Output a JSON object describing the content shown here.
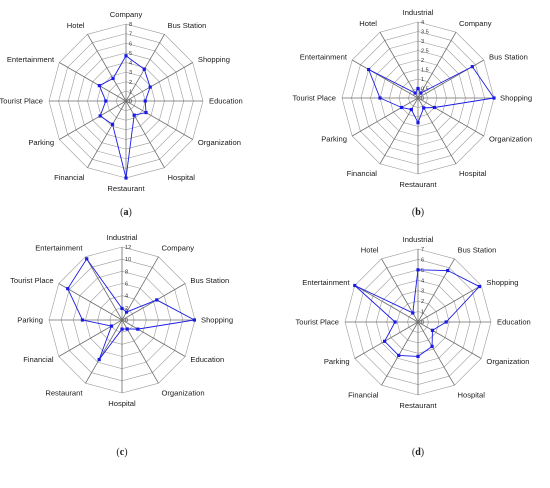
{
  "chart_data": [
    {
      "type": "radar",
      "panel_label": "a",
      "categories": [
        "Company",
        "Bus Station",
        "Shopping",
        "Education",
        "Organization",
        "Hospital",
        "Restaurant",
        "Financial",
        "Parking",
        "Tourist Place",
        "Entertainment",
        "Hotel"
      ],
      "ticks": [
        0,
        1,
        2,
        3,
        4,
        5,
        6,
        7,
        8
      ],
      "ylim": [
        0,
        8
      ],
      "series": [
        {
          "values": [
            4.7,
            3.8,
            2.9,
            2.0,
            2.4,
            1.7,
            8.0,
            2.8,
            3.1,
            2.1,
            3.2,
            2.7
          ],
          "color": "#1a1ae6"
        }
      ]
    },
    {
      "type": "radar",
      "panel_label": "b",
      "categories": [
        "Industrial",
        "Company",
        "Bus Station",
        "Shopping",
        "Organization",
        "Hospital",
        "Restaurant",
        "Financial",
        "Parking",
        "Tourist Place",
        "Entertainment",
        "Hotel"
      ],
      "ticks": [
        0,
        0.5,
        1,
        1.5,
        2,
        2.5,
        3,
        3.5,
        4
      ],
      "ylim": [
        0,
        4
      ],
      "series": [
        {
          "values": [
            0.5,
            0.3,
            3.3,
            4.0,
            1.0,
            0.6,
            1.3,
            0.7,
            1.0,
            2.0,
            3.0,
            0.3
          ],
          "color": "#1a1ae6"
        }
      ]
    },
    {
      "type": "radar",
      "panel_label": "c",
      "categories": [
        "Industrial",
        "Company",
        "Bus Station",
        "Shopping",
        "Education",
        "Organization",
        "Hospital",
        "Restaurant",
        "Financial",
        "Parking",
        "Tourist Place",
        "Entertainment"
      ],
      "ticks": [
        0,
        2,
        4,
        6,
        8,
        10,
        12
      ],
      "ylim": [
        0,
        12
      ],
      "series": [
        {
          "values": [
            1.9,
            1.5,
            6.6,
            11.9,
            3.0,
            1.7,
            1.5,
            7.5,
            2.0,
            6.5,
            10.3,
            11.6
          ],
          "color": "#1a1ae6"
        }
      ]
    },
    {
      "type": "radar",
      "panel_label": "d",
      "categories": [
        "Industrial",
        "Bus Station",
        "Shopping",
        "Education",
        "Organization",
        "Hospital",
        "Restaurant",
        "Financial",
        "Parking",
        "Tourist Place",
        "Entertainment",
        "Hotel"
      ],
      "ticks": [
        0,
        1,
        2,
        3,
        4,
        5,
        6,
        7
      ],
      "ylim": [
        0,
        7
      ],
      "series": [
        {
          "values": [
            5.0,
            5.7,
            6.8,
            2.7,
            1.6,
            2.7,
            3.3,
            3.7,
            3.7,
            2.2,
            7.0,
            1.0
          ],
          "color": "#1a1ae6"
        }
      ]
    }
  ]
}
